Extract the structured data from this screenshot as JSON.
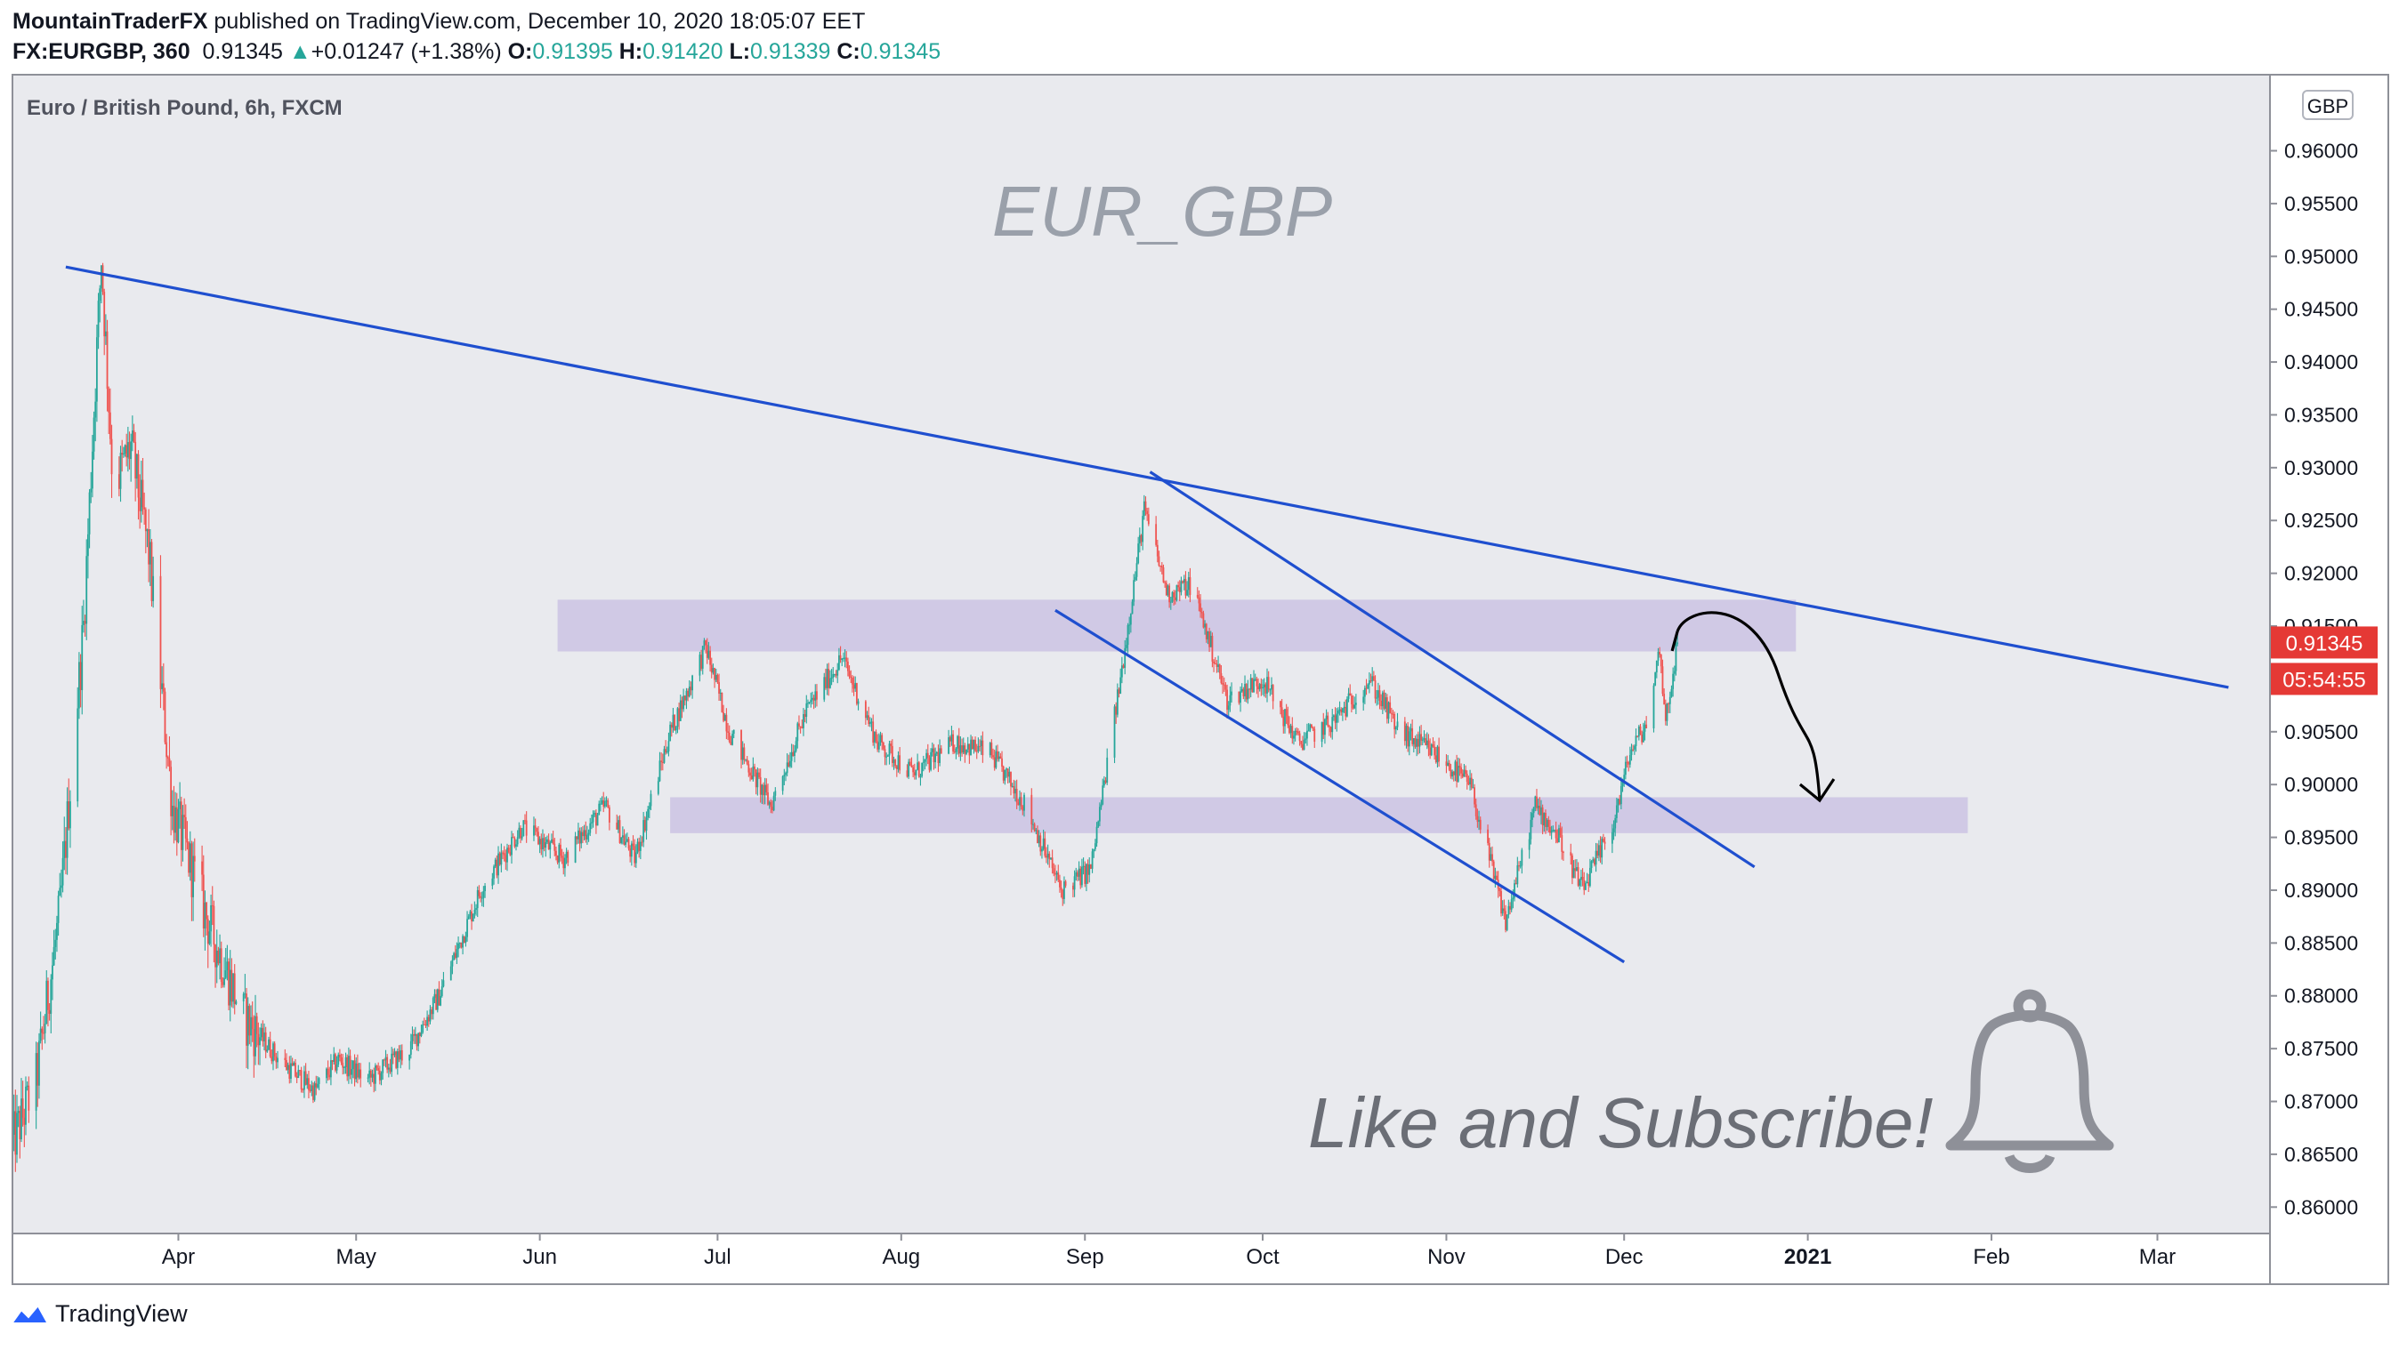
{
  "header": {
    "author": "MountainTraderFX",
    "published_text": "published on TradingView.com, December 10, 2020 18:05:07 EET",
    "symbol": "FX:EURGBP, 360",
    "last": "0.91345",
    "change": "+0.01247 (+1.38%)",
    "o_label": "O:",
    "o_value": "0.91395",
    "h_label": "H:",
    "h_value": "0.91420",
    "l_label": "L:",
    "l_value": "0.91339",
    "c_label": "C:",
    "c_value": "0.91345"
  },
  "footer": {
    "brand": "TradingView"
  },
  "colors": {
    "plot_bg": "#e9eaee",
    "up": "#26a69a",
    "down": "#ef5350",
    "trendline": "#1f4fcf",
    "zone": "#cbc3e3",
    "price_badge": "#e53935",
    "watermark": "#9aa0aa"
  },
  "chart_data": {
    "type": "candlestick",
    "title": "Euro / British Pound, 6h, FXCM",
    "watermark": "EUR_GBP",
    "annotation": "Like and Subscribe!",
    "currency_label": "GBP",
    "last_price": "0.91345",
    "countdown": "05:54:55",
    "x_ticks": [
      "Apr",
      "May",
      "Jun",
      "Jul",
      "Aug",
      "Sep",
      "Oct",
      "Nov",
      "Dec",
      "2021",
      "Feb",
      "Mar"
    ],
    "x_tick_dates": [
      "2020-04-01",
      "2020-05-01",
      "2020-06-01",
      "2020-07-01",
      "2020-08-01",
      "2020-09-01",
      "2020-10-01",
      "2020-11-01",
      "2020-12-01",
      "2021-01-01",
      "2021-02-01",
      "2021-03-01"
    ],
    "y_ticks": [
      "0.96000",
      "0.95500",
      "0.95000",
      "0.94500",
      "0.94000",
      "0.93500",
      "0.93000",
      "0.92500",
      "0.92000",
      "0.91500",
      "0.91000",
      "0.90500",
      "0.90000",
      "0.89500",
      "0.89000",
      "0.88500",
      "0.88000",
      "0.87500",
      "0.87000",
      "0.86500",
      "0.86000"
    ],
    "x_range": [
      "2020-03-04",
      "2021-03-20"
    ],
    "y_range": [
      0.8575,
      0.9672
    ],
    "grid": false,
    "price_path": [
      [
        "2020-03-04",
        0.866
      ],
      [
        "2020-03-08",
        0.872
      ],
      [
        "2020-03-12",
        0.888
      ],
      [
        "2020-03-16",
        0.915
      ],
      [
        "2020-03-19",
        0.95
      ],
      [
        "2020-03-21",
        0.928
      ],
      [
        "2020-03-24",
        0.932
      ],
      [
        "2020-03-27",
        0.922
      ],
      [
        "2020-03-31",
        0.898
      ],
      [
        "2020-04-06",
        0.887
      ],
      [
        "2020-04-12",
        0.878
      ],
      [
        "2020-04-18",
        0.874
      ],
      [
        "2020-04-24",
        0.871
      ],
      [
        "2020-04-28",
        0.874
      ],
      [
        "2020-05-03",
        0.872
      ],
      [
        "2020-05-10",
        0.875
      ],
      [
        "2020-05-15",
        0.88
      ],
      [
        "2020-05-22",
        0.89
      ],
      [
        "2020-05-29",
        0.896
      ],
      [
        "2020-06-05",
        0.893
      ],
      [
        "2020-06-12",
        0.898
      ],
      [
        "2020-06-17",
        0.893
      ],
      [
        "2020-06-23",
        0.905
      ],
      [
        "2020-06-29",
        0.913
      ],
      [
        "2020-07-03",
        0.905
      ],
      [
        "2020-07-10",
        0.898
      ],
      [
        "2020-07-16",
        0.907
      ],
      [
        "2020-07-22",
        0.912
      ],
      [
        "2020-07-28",
        0.904
      ],
      [
        "2020-08-03",
        0.901
      ],
      [
        "2020-08-10",
        0.904
      ],
      [
        "2020-08-16",
        0.903
      ],
      [
        "2020-08-22",
        0.898
      ],
      [
        "2020-08-28",
        0.89
      ],
      [
        "2020-09-02",
        0.892
      ],
      [
        "2020-09-07",
        0.91
      ],
      [
        "2020-09-11",
        0.926
      ],
      [
        "2020-09-15",
        0.918
      ],
      [
        "2020-09-19",
        0.919
      ],
      [
        "2020-09-25",
        0.908
      ],
      [
        "2020-10-01",
        0.91
      ],
      [
        "2020-10-07",
        0.904
      ],
      [
        "2020-10-13",
        0.906
      ],
      [
        "2020-10-19",
        0.91
      ],
      [
        "2020-10-24",
        0.905
      ],
      [
        "2020-10-30",
        0.903
      ],
      [
        "2020-11-05",
        0.9
      ],
      [
        "2020-11-11",
        0.887
      ],
      [
        "2020-11-16",
        0.898
      ],
      [
        "2020-11-20",
        0.895
      ],
      [
        "2020-11-24",
        0.89
      ],
      [
        "2020-11-29",
        0.896
      ],
      [
        "2020-12-02",
        0.903
      ],
      [
        "2020-12-05",
        0.906
      ],
      [
        "2020-12-07",
        0.913
      ],
      [
        "2020-12-08",
        0.906
      ],
      [
        "2020-12-10",
        0.91345
      ]
    ],
    "trendlines": [
      {
        "start": [
          "2020-03-13",
          0.949
        ],
        "end": [
          "2021-03-13",
          0.9092
        ]
      },
      {
        "start": [
          "2020-09-12",
          0.9296
        ],
        "end": [
          "2020-12-23",
          0.8922
        ]
      },
      {
        "start": [
          "2020-08-27",
          0.9165
        ],
        "end": [
          "2020-12-01",
          0.8832
        ]
      }
    ],
    "zones": [
      {
        "from": [
          "2020-06-04",
          0.9175
        ],
        "to": [
          "2020-12-30",
          0.9126
        ]
      },
      {
        "from": [
          "2020-06-23",
          0.8988
        ],
        "to": [
          "2021-01-28",
          0.8954
        ]
      }
    ],
    "projection_arrow": {
      "start": [
        "2020-12-10",
        0.9145
      ],
      "peak": [
        "2020-12-15",
        0.9155
      ],
      "end": [
        "2021-01-03",
        0.8985
      ]
    }
  }
}
